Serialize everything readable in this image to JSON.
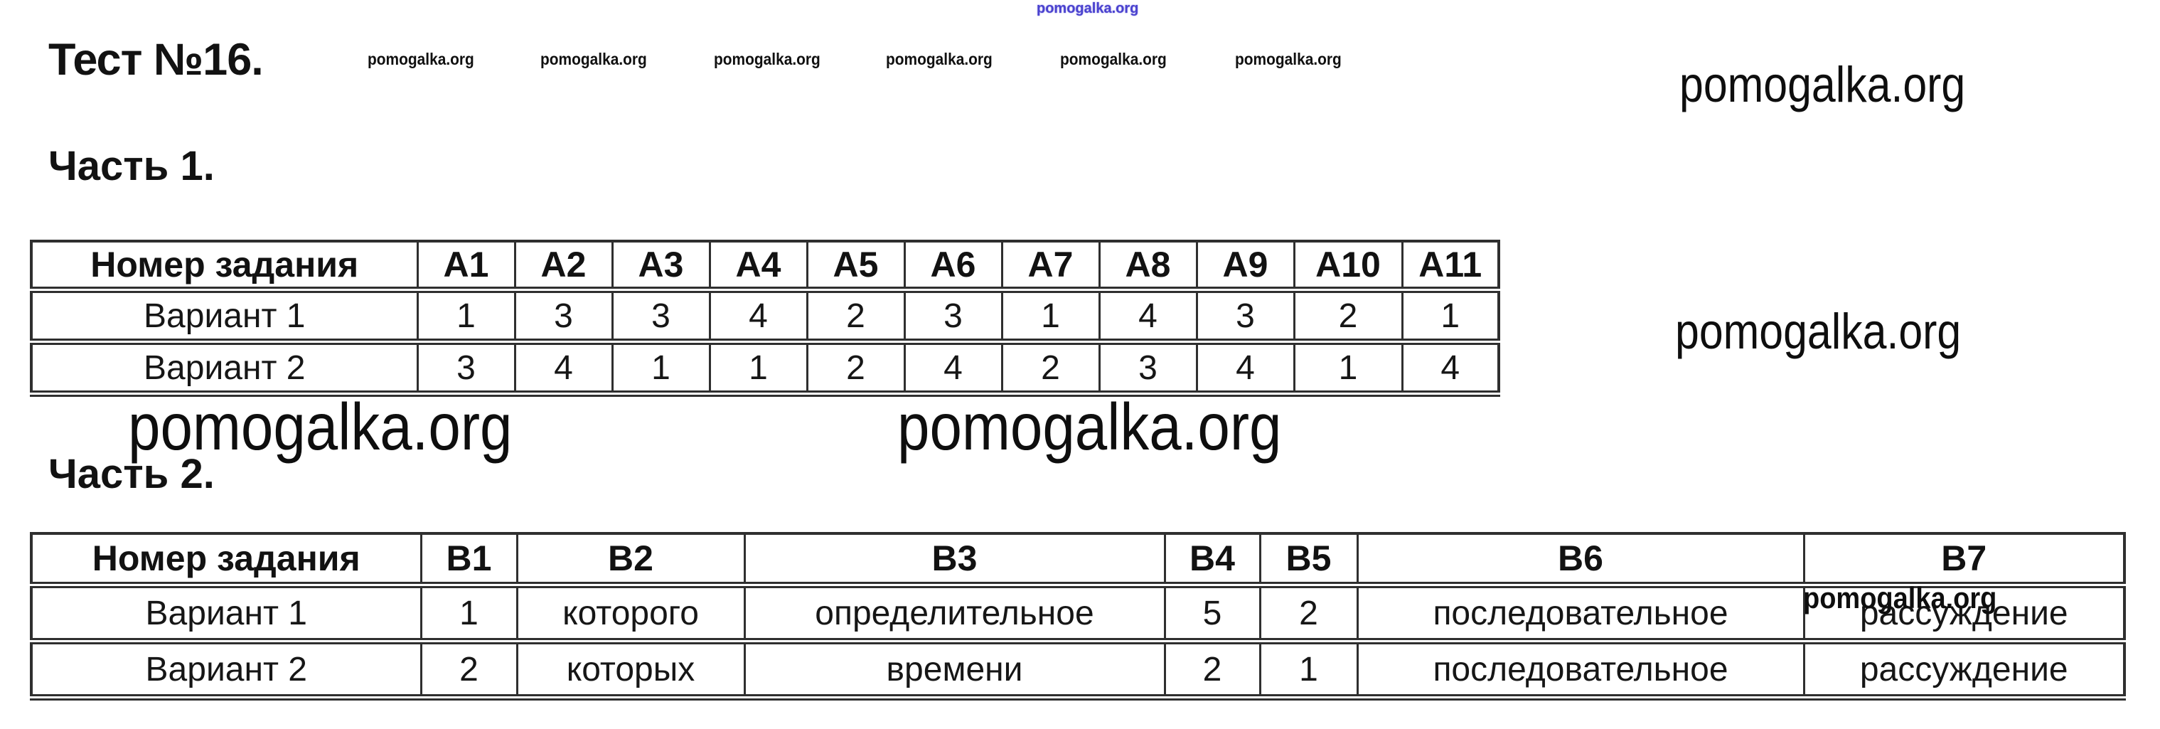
{
  "document": {
    "title": "Тест №16.",
    "part1_heading": "Часть 1.",
    "part2_heading": "Часть 2."
  },
  "watermark": {
    "text": "pomogalka.org",
    "blue_color": "#4a42cf",
    "text_color": "#111111"
  },
  "table1": {
    "header": [
      "Номер задания",
      "А1",
      "А2",
      "А3",
      "А4",
      "А5",
      "А6",
      "А7",
      "А8",
      "А9",
      "А10",
      "А11"
    ],
    "rows": [
      {
        "label": "Вариант 1",
        "values": [
          "1",
          "3",
          "3",
          "4",
          "2",
          "3",
          "1",
          "4",
          "3",
          "2",
          "1"
        ]
      },
      {
        "label": "Вариант 2",
        "values": [
          "3",
          "4",
          "1",
          "1",
          "2",
          "4",
          "2",
          "3",
          "4",
          "1",
          "4"
        ]
      }
    ]
  },
  "table2": {
    "header": [
      "Номер задания",
      "В1",
      "В2",
      "В3",
      "В4",
      "В5",
      "В6",
      "В7"
    ],
    "rows": [
      {
        "label": "Вариант 1",
        "values": [
          "1",
          "которого",
          "определительное",
          "5",
          "2",
          "последовательное",
          "рассуждение"
        ]
      },
      {
        "label": "Вариант 2",
        "values": [
          "2",
          "которых",
          "времени",
          "2",
          "1",
          "последовательное",
          "рассуждение"
        ]
      }
    ]
  }
}
